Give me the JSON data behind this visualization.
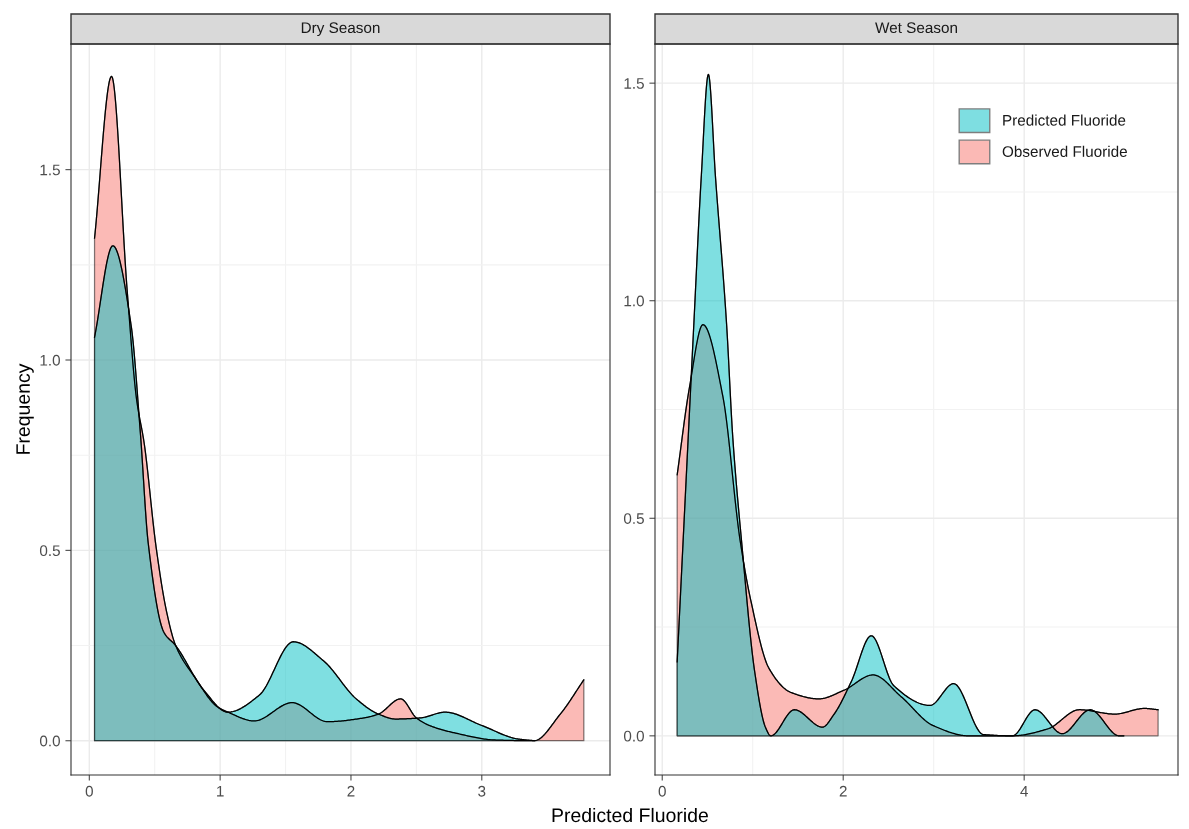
{
  "chart_data": [
    {
      "type": "area",
      "title": "Dry Season",
      "ylabel": "Frequency",
      "series": [
        {
          "color": "#00bfc4",
          "x": [
            0.04,
            0.18,
            0.32,
            0.39,
            0.45,
            0.57,
            0.66,
            0.87,
            1.06,
            1.3,
            1.56,
            1.79,
            2.04,
            2.21,
            2.34,
            2.53,
            2.72,
            3.0,
            3.27,
            3.4
          ],
          "values": [
            1.06,
            1.3,
            1.09,
            0.81,
            0.52,
            0.285,
            0.25,
            0.135,
            0.075,
            0.12,
            0.26,
            0.21,
            0.11,
            0.07,
            0.057,
            0.06,
            0.075,
            0.04,
            0.005,
            0.0
          ]
        },
        {
          "color": "#f8766d",
          "x": [
            0.04,
            0.17,
            0.29,
            0.36,
            0.42,
            0.51,
            0.59,
            0.66,
            0.81,
            0.975,
            1.06,
            1.26,
            1.55,
            1.82,
            2.1,
            2.21,
            2.38,
            2.5,
            2.6,
            2.8,
            3.1,
            3.4,
            3.6,
            3.78
          ],
          "values": [
            1.32,
            1.745,
            1.18,
            0.9,
            0.78,
            0.51,
            0.34,
            0.25,
            0.165,
            0.09,
            0.075,
            0.052,
            0.1,
            0.05,
            0.06,
            0.07,
            0.11,
            0.06,
            0.04,
            0.02,
            0.002,
            0.0,
            0.07,
            0.16
          ]
        }
      ],
      "xlim": [
        -0.14,
        3.98
      ],
      "ylim": [
        -0.09,
        1.83
      ],
      "xticks": [
        0,
        1,
        2,
        3
      ],
      "yticks": [
        {
          "value": 0,
          "label": "0.0"
        },
        {
          "value": 0.5,
          "label": "0.5"
        },
        {
          "value": 1.0,
          "label": "1.0"
        },
        {
          "value": 1.5,
          "label": "1.5"
        }
      ],
      "grid": true
    },
    {
      "type": "area",
      "title": "Wet Season",
      "xlabel": "Predicted Fluoride",
      "series": [
        {
          "name": "Predicted Fluoride",
          "color": "#00bfc4",
          "x": [
            0.165,
            0.35,
            0.43,
            0.51,
            0.59,
            0.71,
            0.78,
            0.88,
            1.02,
            1.14,
            1.2,
            1.46,
            1.77,
            1.9,
            2.09,
            2.31,
            2.56,
            2.96,
            3.22,
            3.55,
            3.87,
            4.12,
            4.42,
            4.73,
            5.05,
            5.1
          ],
          "values": [
            0.17,
            0.95,
            1.28,
            1.52,
            1.28,
            0.95,
            0.685,
            0.44,
            0.15,
            0.02,
            0.0,
            0.06,
            0.02,
            0.05,
            0.125,
            0.23,
            0.115,
            0.07,
            0.12,
            0.003,
            0.0,
            0.06,
            0.005,
            0.06,
            0.0,
            0.0
          ]
        },
        {
          "name": "Observed Fluoride",
          "color": "#f8766d",
          "x": [
            0.165,
            0.3,
            0.45,
            0.67,
            0.86,
            0.98,
            1.18,
            1.42,
            1.73,
            2.01,
            2.33,
            2.64,
            2.99,
            3.39,
            3.87,
            4.26,
            4.61,
            5.0,
            5.33,
            5.48
          ],
          "values": [
            0.6,
            0.8,
            0.945,
            0.78,
            0.45,
            0.31,
            0.155,
            0.1,
            0.085,
            0.105,
            0.14,
            0.09,
            0.024,
            0.0,
            0.0,
            0.016,
            0.06,
            0.05,
            0.063,
            0.06
          ]
        }
      ],
      "xlim": [
        -0.08,
        5.7
      ],
      "ylim": [
        -0.09,
        1.59
      ],
      "xticks": [
        0,
        2,
        4
      ],
      "yticks": [
        {
          "value": 0,
          "label": "0.0"
        },
        {
          "value": 0.5,
          "label": "0.5"
        },
        {
          "value": 1.0,
          "label": "1.0"
        },
        {
          "value": 1.5,
          "label": "1.5"
        }
      ],
      "grid": true,
      "legend": "top right"
    }
  ]
}
